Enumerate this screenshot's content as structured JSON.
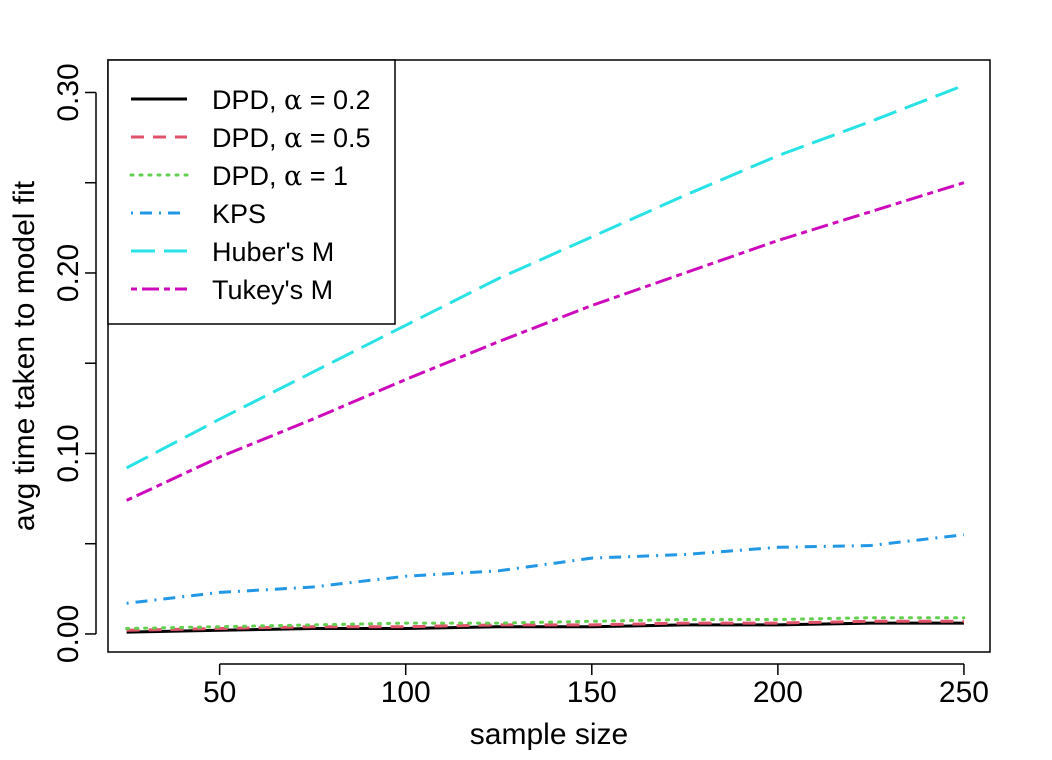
{
  "chart_data": {
    "type": "line",
    "title": "",
    "xlabel": "sample size",
    "ylabel": "avg time taken to model fit",
    "xlim": [
      20,
      257
    ],
    "ylim": [
      -0.01,
      0.318
    ],
    "xticks": [
      50,
      100,
      150,
      200,
      250
    ],
    "xtick_labels": [
      "50",
      "100",
      "150",
      "200",
      "250"
    ],
    "yticks": [
      0.0,
      0.05,
      0.1,
      0.15,
      0.2,
      0.25,
      0.3
    ],
    "ytick_labels": [
      "0.00",
      "",
      "0.10",
      "",
      "0.20",
      "",
      "0.30"
    ],
    "legend_position": "top-left",
    "x": [
      25,
      50,
      75,
      100,
      125,
      150,
      175,
      200,
      225,
      250
    ],
    "series": [
      {
        "name": "DPD, α = 0.2",
        "label_prefix": "DPD, ",
        "label_symbol": "α",
        "label_suffix": " = 0.2",
        "color": "#000000",
        "dash": "solid",
        "values": [
          0.001,
          0.002,
          0.003,
          0.003,
          0.004,
          0.004,
          0.005,
          0.005,
          0.006,
          0.006
        ]
      },
      {
        "name": "DPD, α = 0.5",
        "label_prefix": "DPD, ",
        "label_symbol": "α",
        "label_suffix": " = 0.5",
        "color": "#DF536B",
        "dash": "dashed",
        "values": [
          0.002,
          0.003,
          0.004,
          0.004,
          0.005,
          0.005,
          0.006,
          0.006,
          0.007,
          0.007
        ]
      },
      {
        "name": "DPD, α = 1",
        "label_prefix": "DPD, ",
        "label_symbol": "α",
        "label_suffix": " = 1",
        "color": "#61D04F",
        "dash": "dotted",
        "values": [
          0.003,
          0.004,
          0.005,
          0.006,
          0.006,
          0.007,
          0.008,
          0.008,
          0.009,
          0.009
        ]
      },
      {
        "name": "KPS",
        "label_prefix": "KPS",
        "label_symbol": "",
        "label_suffix": "",
        "color": "#2297E6",
        "dash": "dotdash",
        "values": [
          0.017,
          0.023,
          0.026,
          0.032,
          0.035,
          0.042,
          0.044,
          0.048,
          0.049,
          0.055
        ]
      },
      {
        "name": "Huber's M",
        "label_prefix": "Huber's M",
        "label_symbol": "",
        "label_suffix": "",
        "color": "#28E2E5",
        "dash": "longdash",
        "values": [
          0.092,
          0.119,
          0.145,
          0.171,
          0.197,
          0.22,
          0.243,
          0.265,
          0.284,
          0.304
        ]
      },
      {
        "name": "Tukey's M",
        "label_prefix": "Tukey's M",
        "label_symbol": "",
        "label_suffix": "",
        "color": "#CD0BBC",
        "dash": "twodash",
        "values": [
          0.074,
          0.098,
          0.119,
          0.141,
          0.162,
          0.182,
          0.2,
          0.218,
          0.234,
          0.25
        ]
      }
    ]
  }
}
